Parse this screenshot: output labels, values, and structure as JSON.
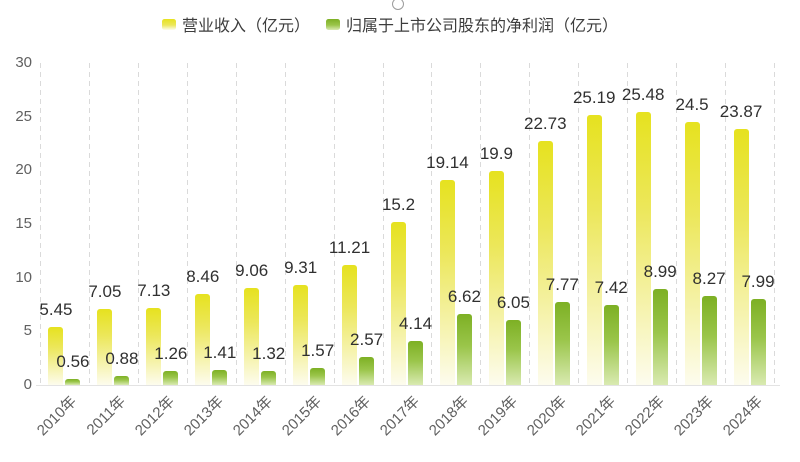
{
  "decorations": {
    "top_circle_icon": "circle-outline"
  },
  "chart_data": {
    "type": "bar",
    "categories": [
      "2010年",
      "2011年",
      "2012年",
      "2013年",
      "2014年",
      "2015年",
      "2016年",
      "2017年",
      "2018年",
      "2019年",
      "2020年",
      "2021年",
      "2022年",
      "2023年",
      "2024年"
    ],
    "series": [
      {
        "name": "营业收入（亿元）",
        "values": [
          5.45,
          7.05,
          7.13,
          8.46,
          9.06,
          9.31,
          11.21,
          15.2,
          19.14,
          19.9,
          22.73,
          25.19,
          25.48,
          24.5,
          23.87
        ],
        "color_top": "#e6e21f",
        "color_mid": "#ece75a",
        "color_bottom": "#fdfcee"
      },
      {
        "name": "归属于上市公司股东的净利润（亿元）",
        "values": [
          0.56,
          0.88,
          1.26,
          1.41,
          1.32,
          1.57,
          2.57,
          4.14,
          6.62,
          6.05,
          7.77,
          7.42,
          8.99,
          8.27,
          7.99
        ],
        "color_top": "#7db024",
        "color_mid": "#9ac54a",
        "color_bottom": "#d9eab1"
      }
    ],
    "title": "",
    "xlabel": "",
    "ylabel": "",
    "ylim": [
      0,
      30
    ],
    "yticks": [
      0,
      5,
      10,
      15,
      20,
      25,
      30
    ],
    "grid": "vertical-dashed",
    "legend_position": "top",
    "value_labels_shown": true,
    "label_color": "#303030",
    "axis_line_color": "#e3e3e3",
    "gridline_color": "#dadada"
  }
}
